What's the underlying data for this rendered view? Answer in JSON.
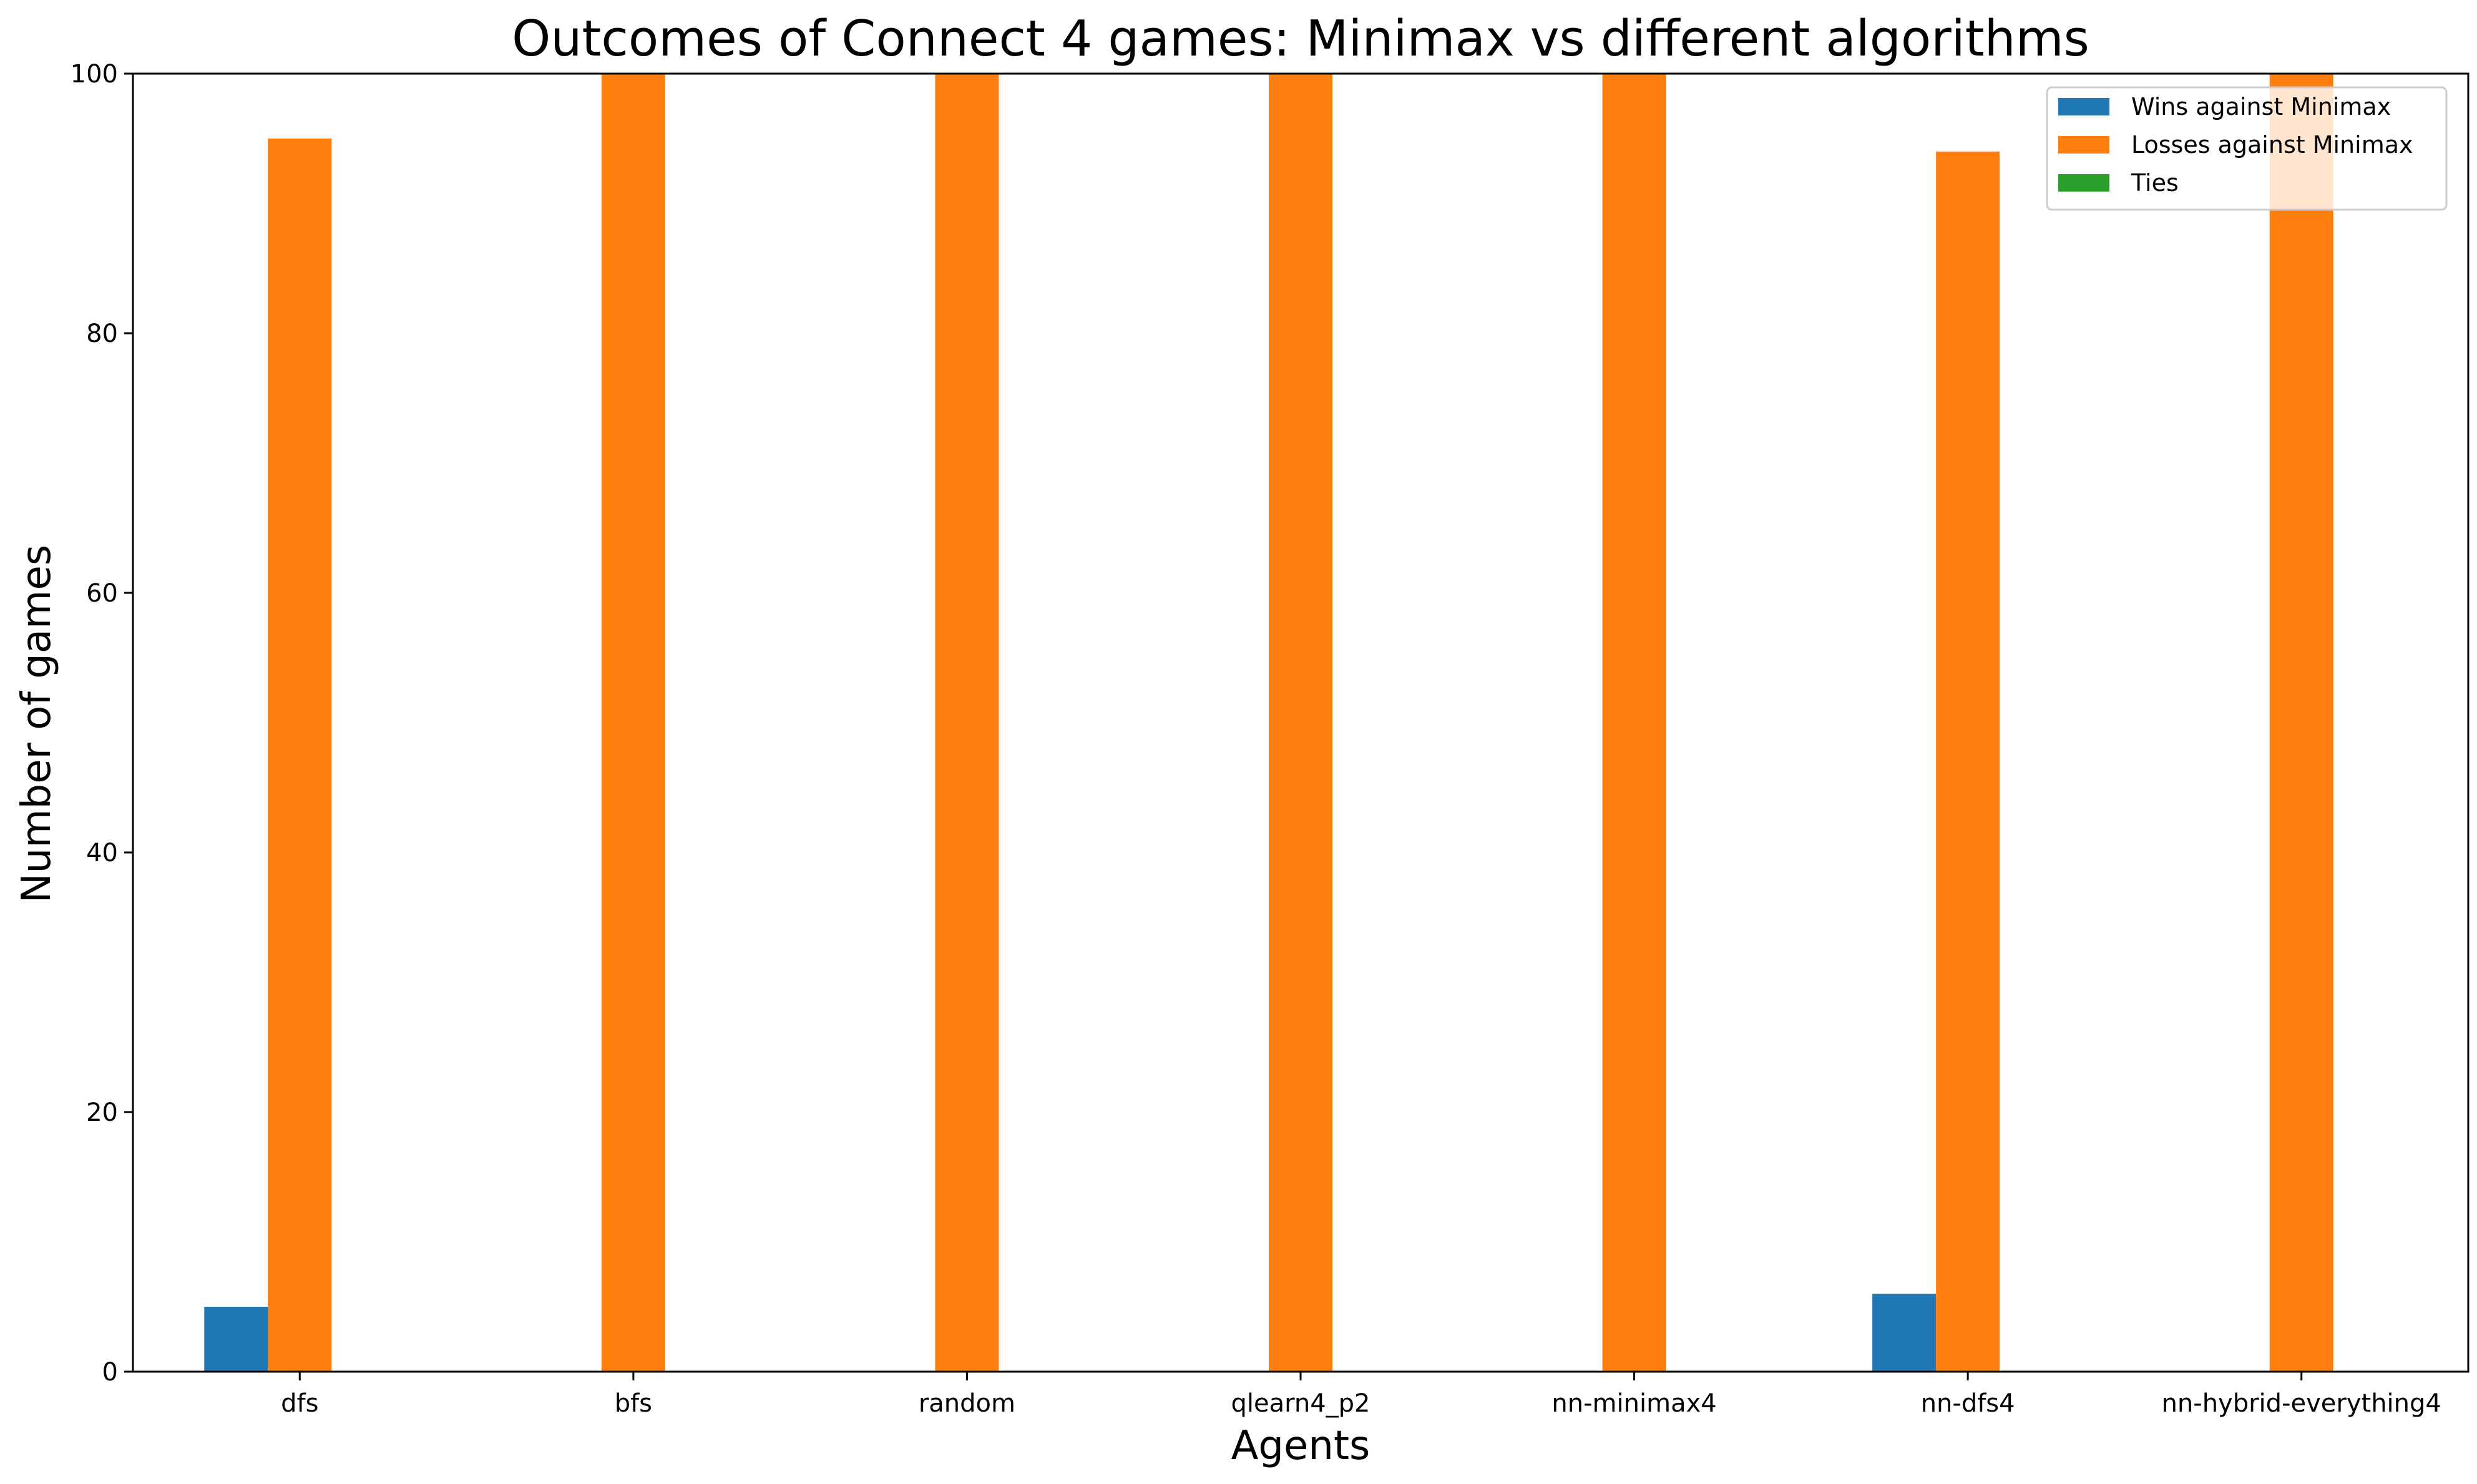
{
  "chart_data": {
    "type": "bar",
    "title": "Outcomes of Connect 4 games: Minimax vs different algorithms",
    "xlabel": "Agents",
    "ylabel": "Number of games",
    "categories": [
      "dfs",
      "bfs",
      "random",
      "qlearn4_p2",
      "nn-minimax4",
      "nn-dfs4",
      "nn-hybrid-everything4"
    ],
    "series": [
      {
        "name": "Wins against Minimax",
        "color": "#1f77b4",
        "values": [
          5,
          0,
          0,
          0,
          0,
          6,
          0
        ]
      },
      {
        "name": "Losses against Minimax",
        "color": "#ff7f0e",
        "values": [
          95,
          100,
          100,
          100,
          100,
          94,
          100
        ]
      },
      {
        "name": "Ties",
        "color": "#2ca02c",
        "values": [
          0,
          0,
          0,
          0,
          0,
          0,
          0
        ]
      }
    ],
    "ylim": [
      0,
      100
    ],
    "yticks": [
      0,
      20,
      40,
      60,
      80,
      100
    ],
    "grid": false,
    "legend_position": "top-right"
  }
}
